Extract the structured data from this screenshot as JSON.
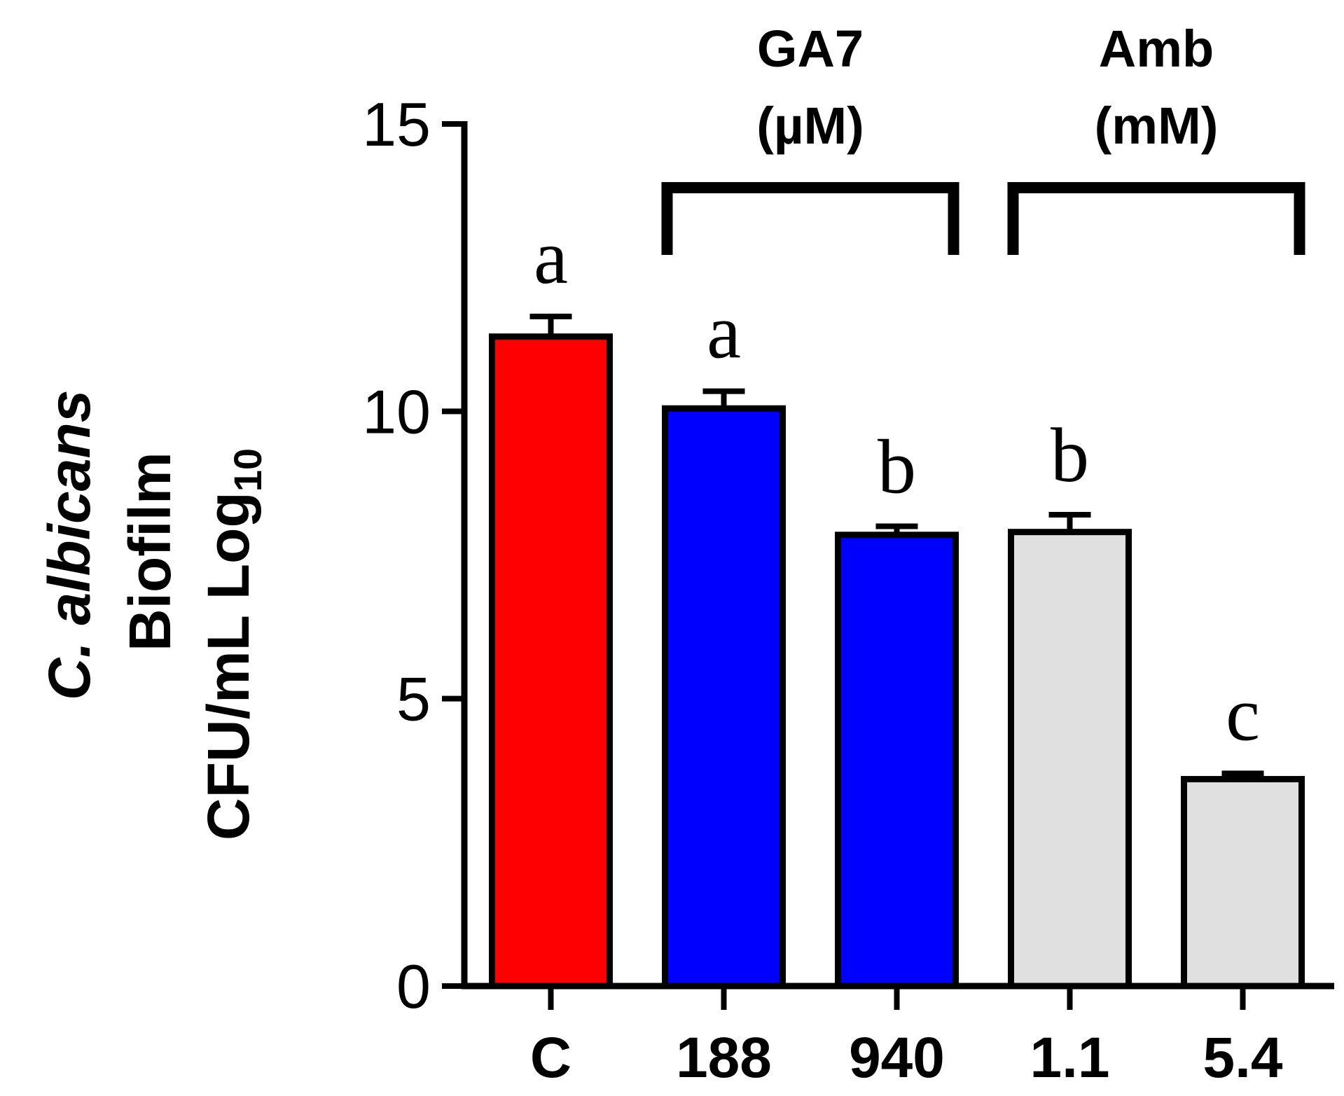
{
  "chart_data": {
    "type": "bar",
    "categories": [
      "C",
      "188",
      "940",
      "1.1",
      "5.4"
    ],
    "values": [
      11.3,
      10.05,
      7.85,
      7.9,
      3.6
    ],
    "errors": [
      0.35,
      0.3,
      0.15,
      0.3,
      0.1
    ],
    "colors": [
      "#ff0000",
      "#0000ff",
      "#0000ff",
      "#e0e0e0",
      "#e0e0e0"
    ],
    "significance": [
      "a",
      "a",
      "b",
      "b",
      "c"
    ],
    "ylim": [
      0,
      15
    ],
    "yticks": [
      0,
      5,
      10,
      15
    ],
    "ylabel_lines": [
      {
        "italic_prefix": "C. albicans",
        "normal": ""
      },
      {
        "italic_prefix": "",
        "normal": "Biofilm"
      },
      {
        "italic_prefix": "",
        "normal": "CFU/mL Log",
        "subscript": "10"
      }
    ],
    "groups": [
      {
        "name": "GA7",
        "unit": "(µM)",
        "from": 1,
        "to": 2
      },
      {
        "name": "Amb",
        "unit": "(mM)",
        "from": 3,
        "to": 4
      }
    ]
  }
}
